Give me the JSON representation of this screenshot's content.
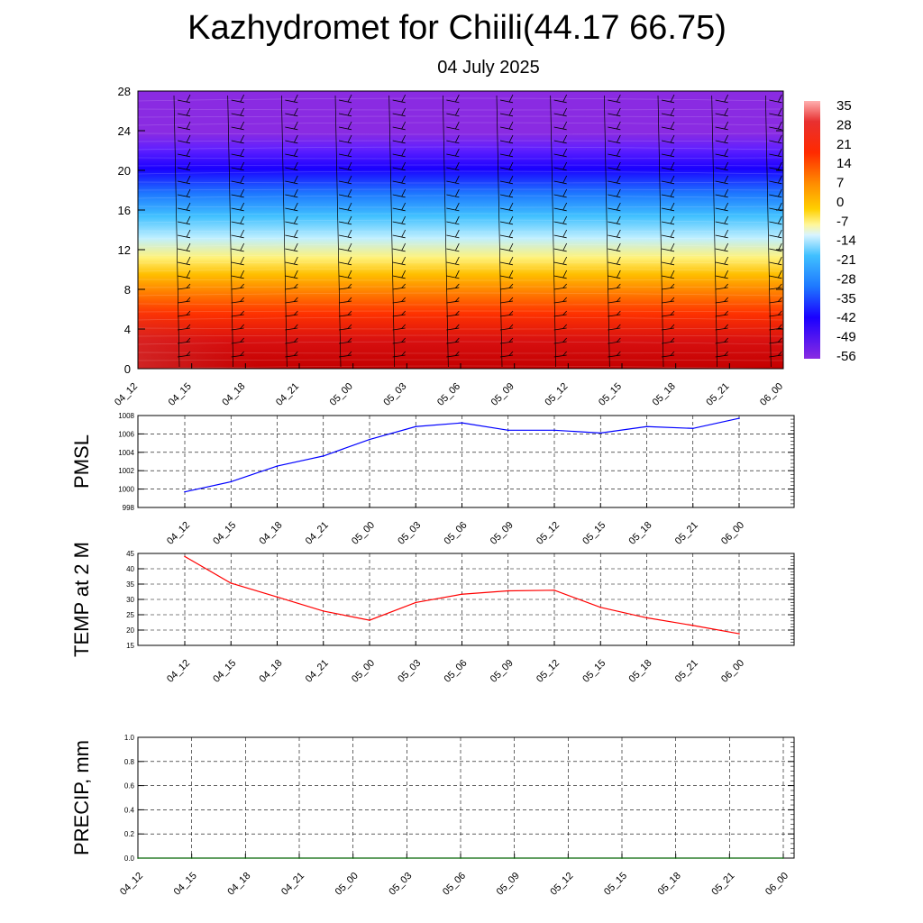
{
  "title": "Kazhydromet for Chiili(44.17 66.75)",
  "subtitle": "04 July 2025",
  "chart_data": [
    {
      "type": "heatmap",
      "name": "cross-section",
      "ylim": [
        0,
        28
      ],
      "yticks": [
        "0",
        "4",
        "8",
        "12",
        "16",
        "20",
        "24",
        "28"
      ],
      "xticks": [
        "04_12",
        "04_15",
        "04_18",
        "04_21",
        "05_00",
        "05_03",
        "05_06",
        "05_09",
        "05_12",
        "05_15",
        "05_18",
        "05_21",
        "06_00"
      ],
      "colorbar_labels": [
        "35",
        "28",
        "21",
        "14",
        "7",
        "0",
        "-7",
        "-14",
        "-21",
        "-28",
        "-35",
        "-42",
        "-49",
        "-56"
      ],
      "overlay": "wind barbs"
    },
    {
      "type": "line",
      "ylabel": "PMSL",
      "ylim": [
        998,
        1008
      ],
      "yticks": [
        "998",
        "1000",
        "1002",
        "1004",
        "1006",
        "1008"
      ],
      "categories": [
        "04_12",
        "04_15",
        "04_18",
        "04_21",
        "05_00",
        "05_03",
        "05_06",
        "05_09",
        "05_12",
        "05_15",
        "05_18",
        "05_21",
        "06_00"
      ],
      "values": [
        999.7,
        1000.8,
        1002.5,
        1003.6,
        1005.4,
        1006.8,
        1007.2,
        1006.4,
        1006.4,
        1006.1,
        1006.8,
        1006.6,
        1007.7
      ],
      "color": "#0000ff",
      "grid": true
    },
    {
      "type": "line",
      "ylabel": "TEMP at 2 M",
      "ylim": [
        15,
        45
      ],
      "yticks": [
        "15",
        "20",
        "25",
        "30",
        "35",
        "40",
        "45"
      ],
      "categories": [
        "04_12",
        "04_15",
        "04_18",
        "04_21",
        "05_00",
        "05_03",
        "05_06",
        "05_09",
        "05_12",
        "05_15",
        "05_18",
        "05_21",
        "06_00"
      ],
      "values": [
        44.0,
        35.3,
        30.8,
        26.2,
        23.2,
        29.0,
        31.7,
        32.8,
        33.0,
        27.4,
        24.0,
        21.5,
        18.8
      ],
      "color": "#ff0000",
      "grid": true
    },
    {
      "type": "line",
      "ylabel": "PRECIP, mm",
      "ylim": [
        0,
        1
      ],
      "yticks": [
        "0.0",
        "0.2",
        "0.4",
        "0.6",
        "0.8",
        "1.0"
      ],
      "categories": [
        "04_12",
        "04_15",
        "04_18",
        "04_21",
        "05_00",
        "05_03",
        "05_06",
        "05_09",
        "05_12",
        "05_15",
        "05_18",
        "05_21",
        "06_00"
      ],
      "values": [
        0,
        0,
        0,
        0,
        0,
        0,
        0,
        0,
        0,
        0,
        0,
        0,
        0
      ],
      "color": "#006400",
      "grid": true
    }
  ],
  "colors": {
    "palette": [
      "#8a2be2",
      "#1a00ff",
      "#1e90ff",
      "#00bfff",
      "#bfefff",
      "#fff07a",
      "#ffc000",
      "#ff8c00",
      "#ff2a00",
      "#e00000",
      "#c80000",
      "#d04040",
      "#ffb0b0"
    ]
  }
}
